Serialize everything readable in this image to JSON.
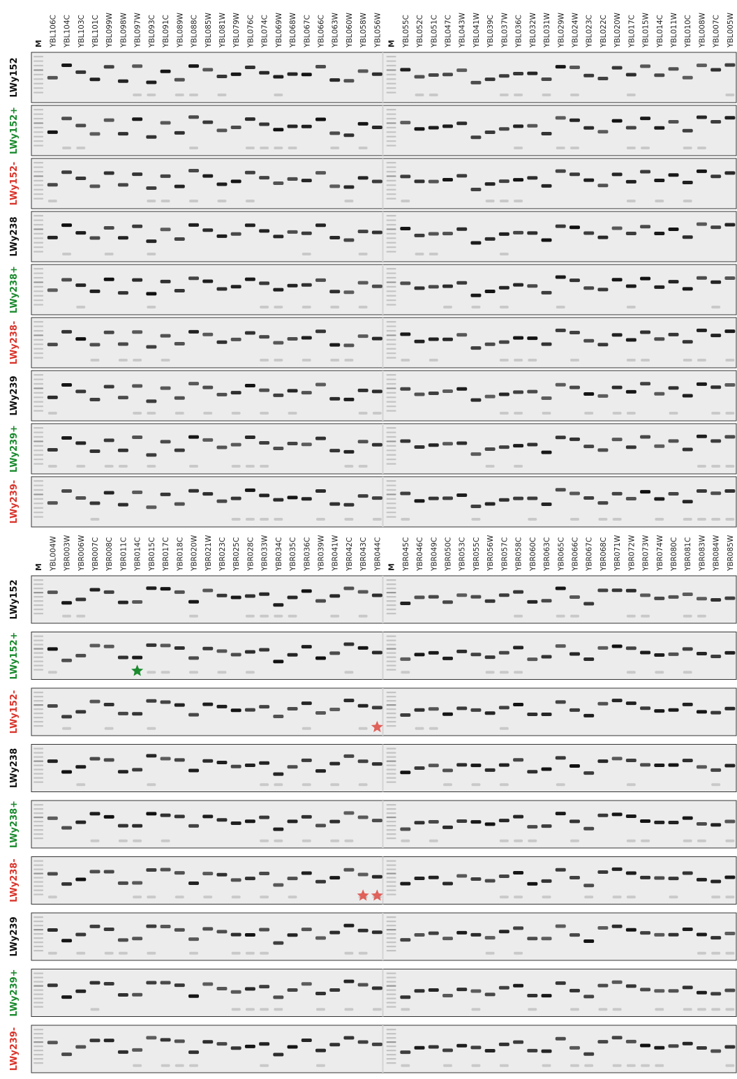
{
  "blocks": [
    {
      "lanes": [
        "M",
        "YBL106C",
        "YBL104C",
        "YBL103C",
        "YBL101C",
        "YBL099W",
        "YBL098W",
        "YBL097W",
        "YBL093C",
        "YBL091C",
        "YBL089W",
        "YBL088C",
        "YBL085W",
        "YBL081W",
        "YBL079W",
        "YBL076C",
        "YBL074C",
        "YBL069W",
        "YBL068W",
        "YBL067C",
        "YBL066C",
        "YBL063W",
        "YBL060W",
        "YBL058W",
        "YBL056W",
        "M",
        "YBL055C",
        "YBL052C",
        "YBL051C",
        "YBL047C",
        "YBL043W",
        "YBL041W",
        "YBL039C",
        "YBL037W",
        "YBL036C",
        "YBL032W",
        "YBL031W",
        "YBL029W",
        "YBL024W",
        "YBL023C",
        "YBL022C",
        "YBL020W",
        "YBL017C",
        "YBL015W",
        "YBL014C",
        "YBL011W",
        "YBL010C",
        "YBL008W",
        "YBL007C",
        "YBL005W"
      ],
      "rows": [
        {
          "label": "LWy152",
          "color": "#111111"
        },
        {
          "label": "LWy152+",
          "color": "#1a8a2e"
        },
        {
          "label": "LWy152-",
          "color": "#d9342b"
        },
        {
          "label": "LWy238",
          "color": "#111111"
        },
        {
          "label": "LWy238+",
          "color": "#1a8a2e"
        },
        {
          "label": "LWy238-",
          "color": "#d9342b"
        },
        {
          "label": "LWy239",
          "color": "#111111"
        },
        {
          "label": "LWy239+",
          "color": "#1a8a2e"
        },
        {
          "label": "LWy239-",
          "color": "#d9342b"
        }
      ]
    },
    {
      "lanes": [
        "M",
        "YBL004W",
        "YBR003W",
        "YBR006W",
        "YBR007C",
        "YBR008C",
        "YBR011C",
        "YBR014C",
        "YBR015C",
        "YBR017C",
        "YBR018C",
        "YBR020W",
        "YBR021W",
        "YBR023C",
        "YBR025C",
        "YBR028C",
        "YBR033W",
        "YBR034C",
        "YBR035C",
        "YBR036C",
        "YBR039W",
        "YBR041W",
        "YBR042C",
        "YBR043C",
        "YBR044C",
        "M",
        "YBR045C",
        "YBR046C",
        "YBR049C",
        "YBR050C",
        "YBR053C",
        "YBR055C",
        "YBR056W",
        "YBR057C",
        "YBR058C",
        "YBR060C",
        "YBR063C",
        "YBR065C",
        "YBR066C",
        "YBR067C",
        "YBR068C",
        "YBR071W",
        "YBR072W",
        "YBR073W",
        "YBR074W",
        "YBR080C",
        "YBR081C",
        "YBR083W",
        "YBR084W",
        "YBR085W"
      ],
      "rows": [
        {
          "label": "LWy152",
          "color": "#111111"
        },
        {
          "label": "LWy152+",
          "color": "#1a8a2e"
        },
        {
          "label": "LWy152-",
          "color": "#d9342b"
        },
        {
          "label": "LWy238",
          "color": "#111111"
        },
        {
          "label": "LWy238+",
          "color": "#1a8a2e"
        },
        {
          "label": "LWy238-",
          "color": "#d9342b"
        },
        {
          "label": "LWy239",
          "color": "#111111"
        },
        {
          "label": "LWy239+",
          "color": "#1a8a2e"
        },
        {
          "label": "LWy239-",
          "color": "#d9342b"
        }
      ]
    }
  ]
}
